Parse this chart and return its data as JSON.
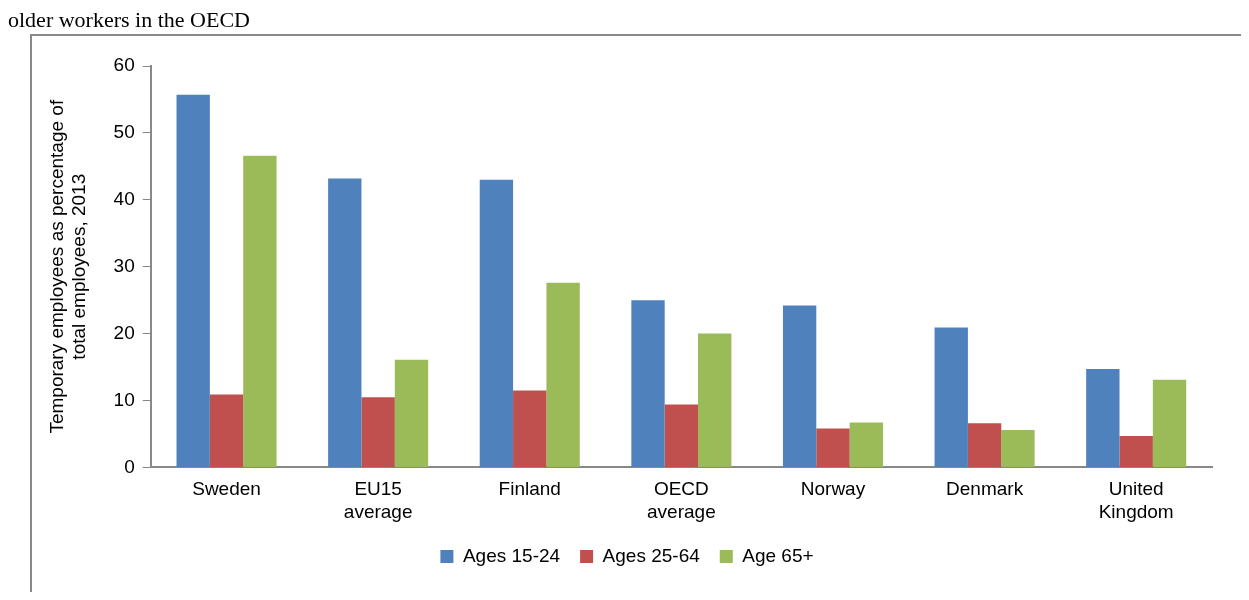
{
  "chart_data": {
    "type": "bar",
    "title": "older workers in the OECD",
    "ylabel": "Temporary employees as percentage of total employees, 2013",
    "categories": [
      "Sweden",
      "EU15 average",
      "Finland",
      "OECD average",
      "Norway",
      "Denmark",
      "United Kingdom"
    ],
    "series": [
      {
        "name": "Ages 15-24",
        "color": "#4f81bd",
        "values": [
          55.7,
          43.2,
          43.0,
          25.0,
          24.2,
          20.9,
          14.7
        ]
      },
      {
        "name": "Ages 25-64",
        "color": "#c0504d",
        "values": [
          10.9,
          10.5,
          11.5,
          9.4,
          5.8,
          6.6,
          4.7
        ]
      },
      {
        "name": "Age 65+",
        "color": "#9bbb59",
        "values": [
          46.6,
          16.1,
          27.6,
          20.0,
          6.7,
          5.6,
          13.1
        ]
      }
    ],
    "ylim": [
      0,
      60
    ],
    "yticks": [
      0,
      10,
      20,
      30,
      40,
      50,
      60
    ],
    "grid": false,
    "legend": "bottom"
  }
}
